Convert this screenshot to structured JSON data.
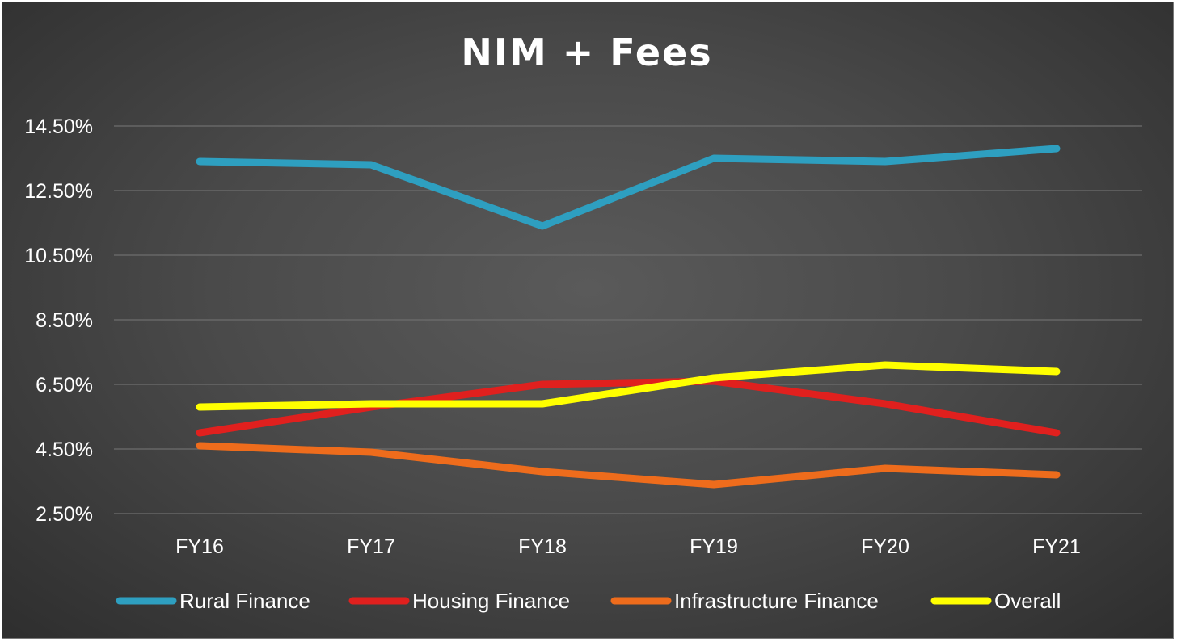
{
  "chart_data": {
    "type": "line",
    "title": "NIM + Fees",
    "categories": [
      "FY16",
      "FY17",
      "FY18",
      "FY19",
      "FY20",
      "FY21"
    ],
    "ylim": [
      2.5,
      14.5
    ],
    "yticks": [
      2.5,
      4.5,
      6.5,
      8.5,
      10.5,
      12.5,
      14.5
    ],
    "ytick_labels": [
      "2.50%",
      "4.50%",
      "6.50%",
      "8.50%",
      "10.50%",
      "12.50%",
      "14.50%"
    ],
    "grid": true,
    "legend_position": "bottom",
    "xlabel": "",
    "ylabel": "",
    "series": [
      {
        "name": "Rural Finance",
        "color": "#2e9fc0",
        "values": [
          13.4,
          13.3,
          11.4,
          13.5,
          13.4,
          13.8
        ]
      },
      {
        "name": "Housing Finance",
        "color": "#e0201e",
        "values": [
          5.0,
          5.8,
          6.5,
          6.6,
          5.9,
          5.0
        ]
      },
      {
        "name": "Infrastructure Finance",
        "color": "#ee6c1c",
        "values": [
          4.6,
          4.4,
          3.8,
          3.4,
          3.9,
          3.7
        ]
      },
      {
        "name": "Overall",
        "color": "#ffff00",
        "values": [
          5.8,
          5.9,
          5.9,
          6.7,
          7.1,
          6.9
        ]
      }
    ]
  }
}
